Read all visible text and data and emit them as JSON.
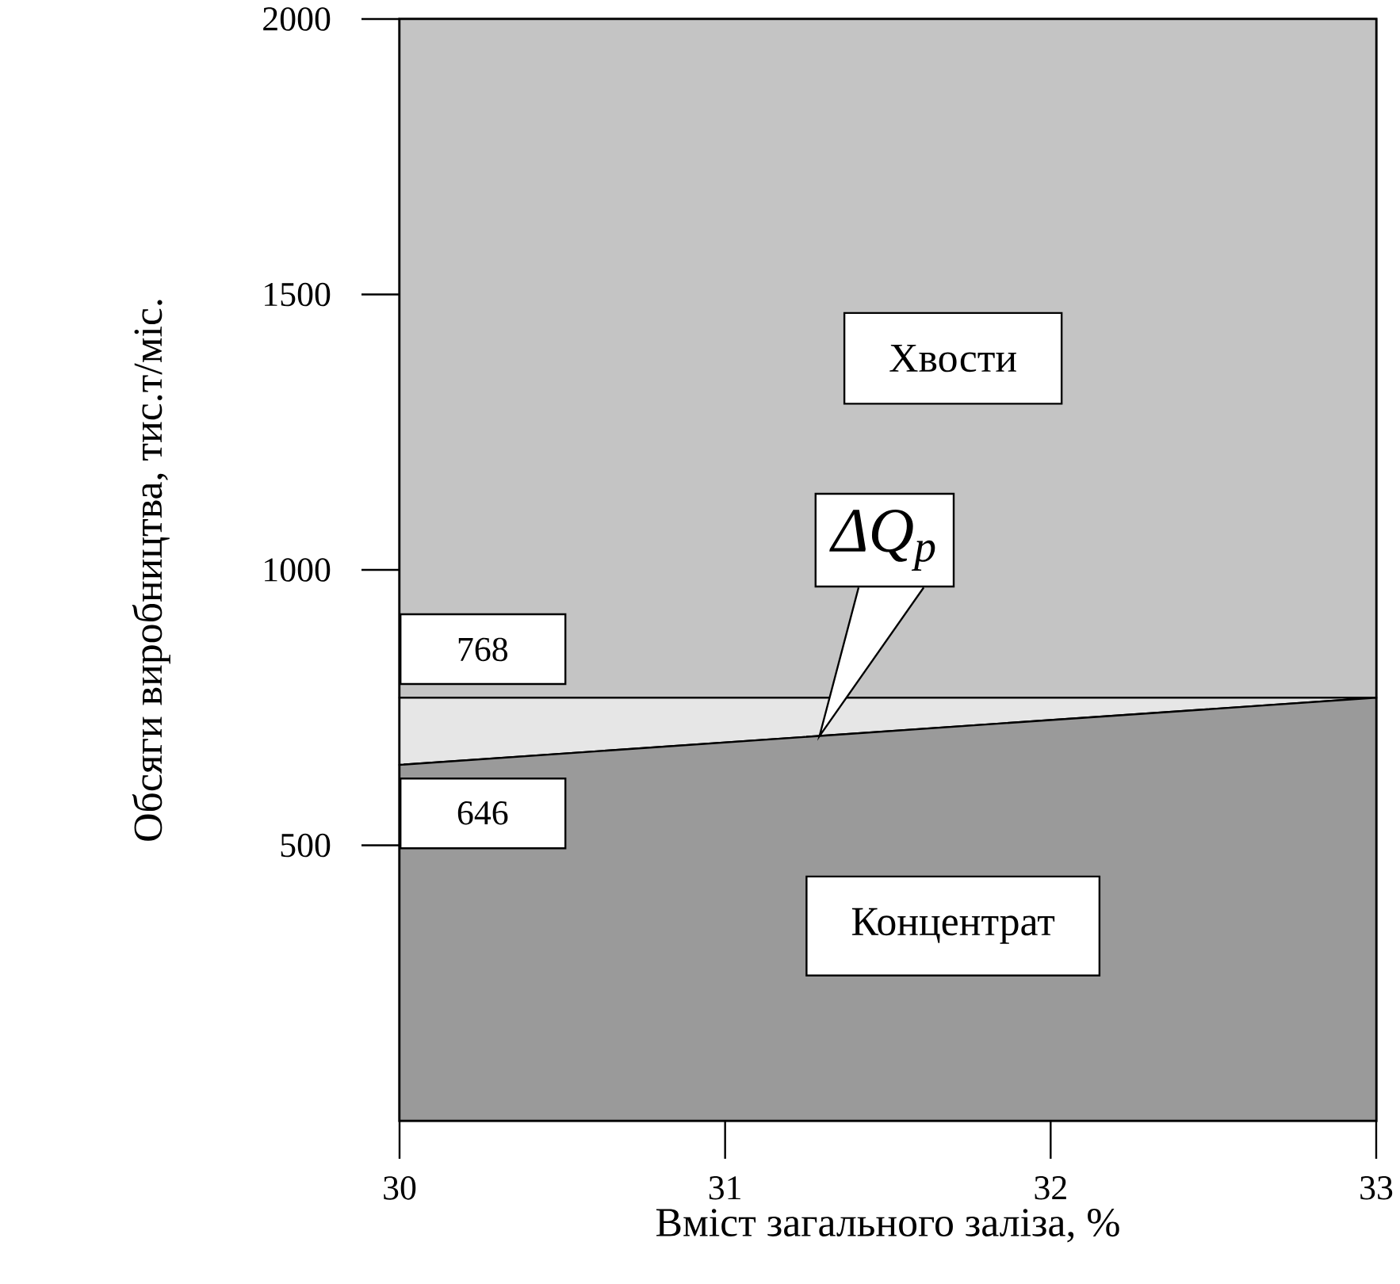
{
  "chart_data": {
    "type": "area",
    "stacked": true,
    "xlabel": "Вміст загального заліза, %",
    "ylabel": "Обсяги виробництва, тис.т/міс.",
    "x": [
      30,
      33
    ],
    "series": [
      {
        "name": "Концентрат",
        "color": "#9a9a9a",
        "values": [
          646,
          768
        ]
      },
      {
        "name": "ΔQ$_{p}$",
        "color": "#e6e6e6",
        "values": [
          122,
          0
        ]
      },
      {
        "name": "Хвости",
        "color": "#c4c4c4",
        "values": [
          1232,
          1232
        ]
      }
    ],
    "xlim": [
      30,
      33
    ],
    "xticks": [
      30,
      31,
      32,
      33
    ],
    "ylim": [
      0,
      2000
    ],
    "yticks": [
      500,
      1000,
      1500,
      2000
    ],
    "annotations": [
      "768",
      "646"
    ]
  }
}
